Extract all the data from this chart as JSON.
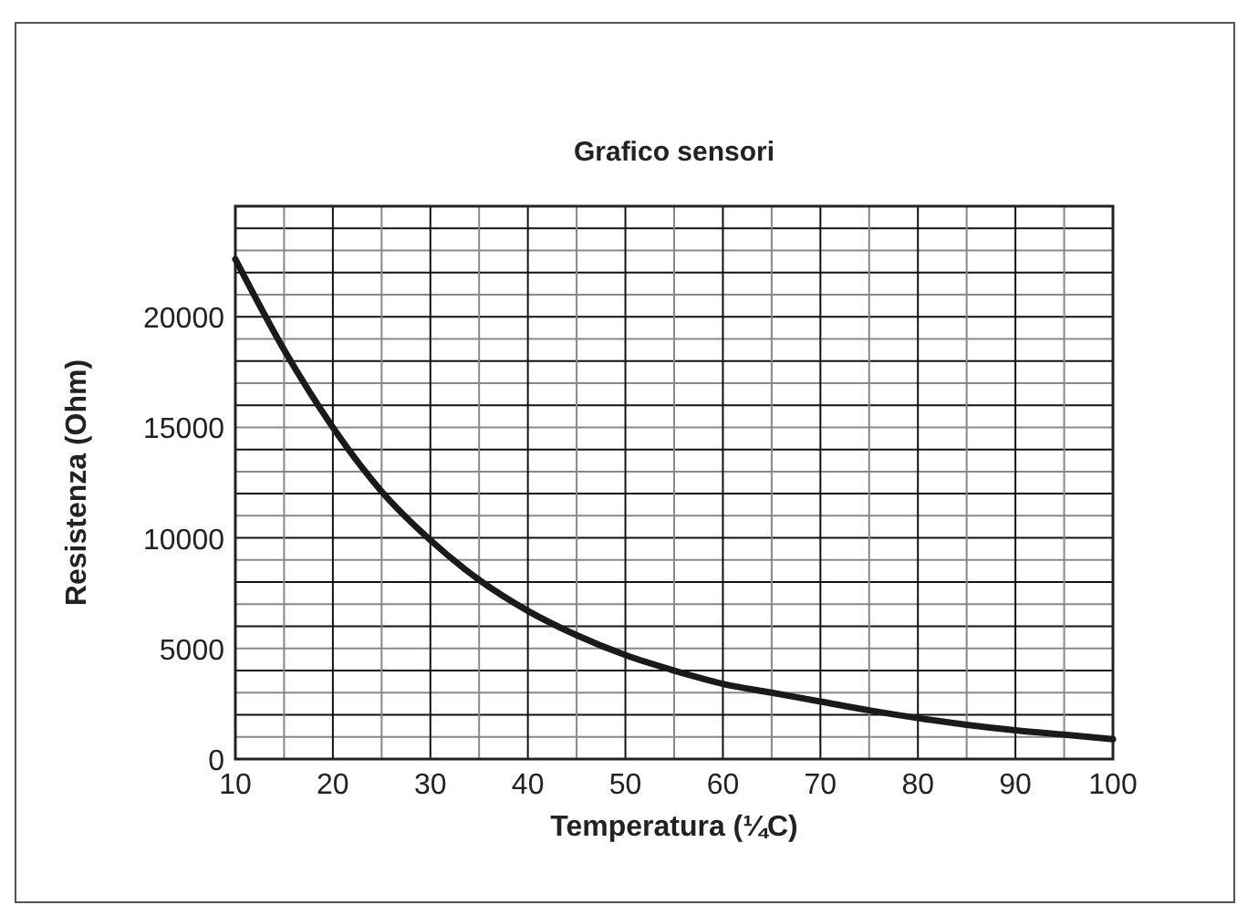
{
  "chart_data": {
    "type": "line",
    "title": "Grafico sensori",
    "xlabel": "Temperatura (¼C)",
    "ylabel": "Resistenza (Ohm)",
    "x": [
      10,
      15,
      20,
      25,
      30,
      35,
      40,
      45,
      50,
      55,
      60,
      65,
      70,
      75,
      80,
      85,
      90,
      95,
      100
    ],
    "series": [
      {
        "color": "#1a1a1a",
        "values": [
          22600,
          18500,
          15000,
          12100,
          9900,
          8100,
          6700,
          5600,
          4700,
          4000,
          3400,
          3000,
          2600,
          2200,
          1850,
          1550,
          1300,
          1100,
          900
        ]
      }
    ],
    "xlim": [
      10,
      100
    ],
    "xticks": [
      10,
      20,
      30,
      40,
      50,
      60,
      70,
      80,
      90,
      100
    ],
    "ylim": [
      0,
      25000
    ],
    "yticks": [
      0,
      5000,
      10000,
      15000,
      20000
    ],
    "grid": true,
    "marker": "none",
    "line_style": "solid"
  }
}
